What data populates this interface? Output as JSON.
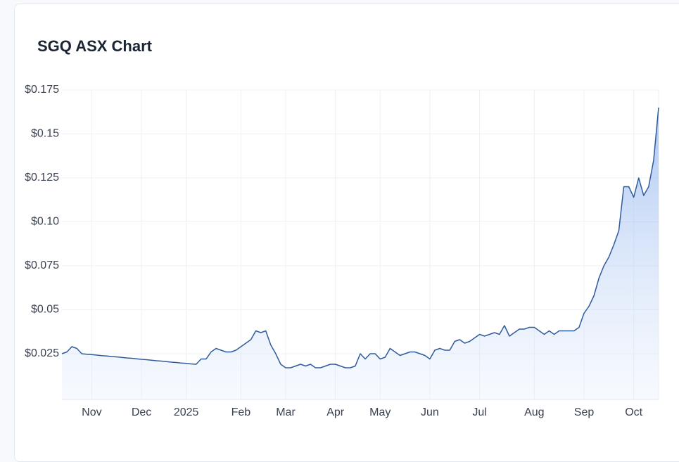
{
  "chart_data": {
    "type": "area",
    "title": "SGQ ASX Chart",
    "categories": [
      null,
      null,
      null,
      null,
      null,
      null,
      "Nov",
      null,
      null,
      null,
      null,
      null,
      null,
      null,
      null,
      null,
      "Dec",
      null,
      null,
      null,
      null,
      null,
      null,
      null,
      null,
      "2025",
      null,
      null,
      null,
      null,
      null,
      null,
      null,
      null,
      null,
      null,
      "Feb",
      null,
      null,
      null,
      null,
      null,
      null,
      null,
      null,
      "Mar",
      null,
      null,
      null,
      null,
      null,
      null,
      null,
      null,
      null,
      "Apr",
      null,
      null,
      null,
      null,
      null,
      null,
      null,
      null,
      "May",
      null,
      null,
      null,
      null,
      null,
      null,
      null,
      null,
      null,
      "Jun",
      null,
      null,
      null,
      null,
      null,
      null,
      null,
      null,
      null,
      "Jul",
      null,
      null,
      null,
      null,
      null,
      null,
      null,
      null,
      null,
      null,
      "Aug",
      null,
      null,
      null,
      null,
      null,
      null,
      null,
      null,
      null,
      "Sep",
      null,
      null,
      null,
      null,
      null,
      null,
      null,
      null,
      null,
      "Oct",
      null,
      null,
      null,
      null,
      null
    ],
    "values": [
      0.025,
      0.026,
      0.029,
      0.028,
      0.025,
      0.0247,
      0.0245,
      0.0242,
      0.0239,
      0.0237,
      0.0234,
      0.0232,
      0.0229,
      0.0226,
      0.0224,
      0.0221,
      0.0218,
      0.0216,
      0.0213,
      0.021,
      0.0208,
      0.0205,
      0.0202,
      0.02,
      0.0197,
      0.0195,
      0.0192,
      0.019,
      0.022,
      0.022,
      0.026,
      0.028,
      0.027,
      0.026,
      0.026,
      0.027,
      0.029,
      0.031,
      0.033,
      0.038,
      0.037,
      0.038,
      0.03,
      0.025,
      0.019,
      0.017,
      0.017,
      0.018,
      0.019,
      0.018,
      0.019,
      0.017,
      0.017,
      0.018,
      0.019,
      0.019,
      0.018,
      0.017,
      0.017,
      0.018,
      0.025,
      0.022,
      0.025,
      0.025,
      0.022,
      0.023,
      0.028,
      0.026,
      0.024,
      0.025,
      0.026,
      0.026,
      0.025,
      0.024,
      0.022,
      0.027,
      0.028,
      0.027,
      0.027,
      0.032,
      0.033,
      0.031,
      0.032,
      0.034,
      0.036,
      0.035,
      0.036,
      0.037,
      0.036,
      0.041,
      0.035,
      0.037,
      0.039,
      0.039,
      0.04,
      0.04,
      0.038,
      0.036,
      0.038,
      0.036,
      0.038,
      0.038,
      0.038,
      0.038,
      0.04,
      0.048,
      0.052,
      0.058,
      0.068,
      0.075,
      0.08,
      0.087,
      0.095,
      0.12,
      0.12,
      0.114,
      0.125,
      0.115,
      0.12,
      0.135,
      0.165
    ],
    "color": "#2f5b9c",
    "ylim": [
      0,
      0.175
    ],
    "yticks": [
      {
        "value": 0.025,
        "label": "$0.025"
      },
      {
        "value": 0.05,
        "label": "$0.05"
      },
      {
        "value": 0.075,
        "label": "$0.075"
      },
      {
        "value": 0.1,
        "label": "$0.10"
      },
      {
        "value": 0.125,
        "label": "$0.125"
      },
      {
        "value": 0.15,
        "label": "$0.15"
      },
      {
        "value": 0.175,
        "label": "$0.175"
      }
    ],
    "grid": true
  }
}
